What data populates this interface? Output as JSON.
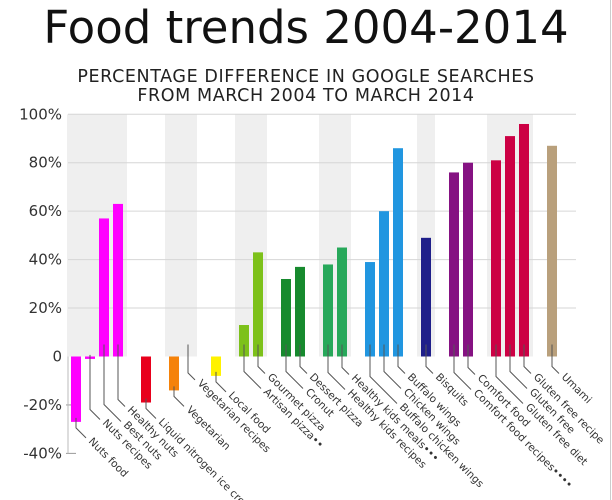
{
  "chart_data": {
    "type": "bar",
    "title": "Food trends 2004-2014",
    "subtitle": [
      "PERCENTAGE DIFFERENCE IN GOOGLE SEARCHES",
      "FROM MARCH 2004 TO MARCH 2014"
    ],
    "xlabel": "",
    "ylabel": "",
    "ylim": [
      -40,
      100
    ],
    "yticks": [
      {
        "value": 100,
        "label": "100%"
      },
      {
        "value": 80,
        "label": "80%"
      },
      {
        "value": 60,
        "label": "60%"
      },
      {
        "value": 40,
        "label": "40%"
      },
      {
        "value": 20,
        "label": "20%"
      },
      {
        "value": 0,
        "label": "0"
      },
      {
        "value": -20,
        "label": "-20%"
      },
      {
        "value": -40,
        "label": "-40%"
      }
    ],
    "grid": true,
    "legend": "none",
    "groups": [
      {
        "shaded": true,
        "color": "#ff00ff",
        "bars": [
          {
            "label": "Nuts food",
            "value": -27
          },
          {
            "label": "Nuts recipes",
            "value": -1
          },
          {
            "label": "Best nuts",
            "value": 57
          },
          {
            "label": "Healthy nuts",
            "value": 63
          }
        ]
      },
      {
        "shaded": false,
        "color": "#e8001c",
        "bars": [
          {
            "label": "Liquid nitrogen ice cream•",
            "value": -19
          }
        ]
      },
      {
        "shaded": true,
        "color": "#f5820a",
        "bars": [
          {
            "label": "Vegetarian",
            "value": -14
          },
          {
            "label": "Vegetarian recipes",
            "value": 0
          }
        ]
      },
      {
        "shaded": false,
        "color": "#fff200",
        "bars": [
          {
            "label": "Local food",
            "value": -8
          }
        ]
      },
      {
        "shaded": true,
        "color": "#7dc11a",
        "bars": [
          {
            "label": "Artisan pizza••",
            "value": 13
          },
          {
            "label": "Gourmet pizza",
            "value": 43
          }
        ]
      },
      {
        "shaded": false,
        "color": "#178a2e",
        "bars": [
          {
            "label": "Cronut",
            "value": 32
          },
          {
            "label": "Dessert pizza",
            "value": 37
          }
        ]
      },
      {
        "shaded": true,
        "color": "#27a85a",
        "bars": [
          {
            "label": "Healthy kids recipes",
            "value": 38
          },
          {
            "label": "Healthy kids meals•••",
            "value": 45
          }
        ]
      },
      {
        "shaded": false,
        "color": "#2196e0",
        "bars": [
          {
            "label": "Buffalo chicken wings",
            "value": 39
          },
          {
            "label": "Chicken wings",
            "value": 60
          },
          {
            "label": "Buffalo wings",
            "value": 86
          }
        ]
      },
      {
        "shaded": true,
        "color": "#1f1f8a",
        "bars": [
          {
            "label": "Bisquits",
            "value": 49
          }
        ]
      },
      {
        "shaded": false,
        "color": "#851282",
        "bars": [
          {
            "label": "Comfort food recipes••••",
            "value": 76
          },
          {
            "label": "Comfort food",
            "value": 80
          }
        ]
      },
      {
        "shaded": true,
        "color": "#cc0044",
        "bars": [
          {
            "label": "Gluten free diet",
            "value": 81
          },
          {
            "label": "Gluten free",
            "value": 91
          },
          {
            "label": "Gluten free recipe",
            "value": 96
          }
        ]
      },
      {
        "shaded": false,
        "color": "#b9a07c",
        "bars": [
          {
            "label": "Umami",
            "value": 87
          }
        ]
      }
    ]
  },
  "colors": {
    "band": "#efefef",
    "grid": "#d6d6d6",
    "leader": "#555555"
  }
}
